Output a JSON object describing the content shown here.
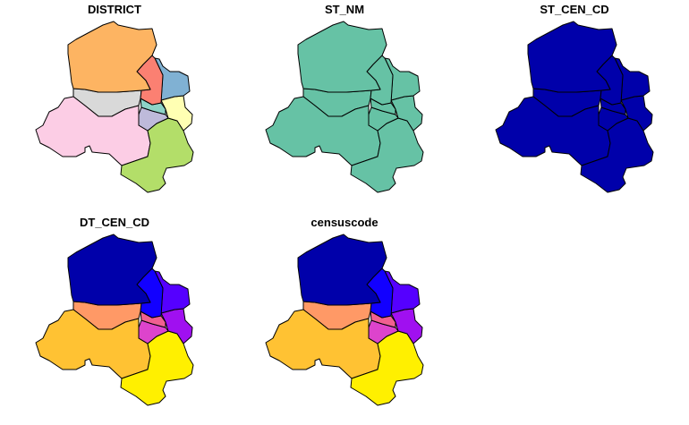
{
  "panels": [
    {
      "title": "DISTRICT",
      "fills": [
        "#FDB462",
        "#FB8072",
        "#80B1D3",
        "#FFFFB3",
        "#8DD3C7",
        "#BEBADA",
        "#B3DE69",
        "#FCCDE5",
        "#D9D9D9"
      ]
    },
    {
      "title": "ST_NM",
      "fills": [
        "#66C2A5",
        "#66C2A5",
        "#66C2A5",
        "#66C2A5",
        "#66C2A5",
        "#66C2A5",
        "#66C2A5",
        "#66C2A5",
        "#66C2A5"
      ]
    },
    {
      "title": "ST_CEN_CD",
      "fills": [
        "#0000AA",
        "#0000AA",
        "#0000AA",
        "#0000AA",
        "#0000AA",
        "#0000AA",
        "#0000AA",
        "#0000AA",
        "#0000AA"
      ]
    },
    {
      "title": "DT_CEN_CD",
      "fills": [
        "#0000AA",
        "#1200FF",
        "#5500FF",
        "#A010F0",
        "#F06090",
        "#DD44CC",
        "#FFF000",
        "#FFC233",
        "#FF9966"
      ]
    },
    {
      "title": "censuscode",
      "fills": [
        "#0000AA",
        "#1200FF",
        "#5500FF",
        "#A010F0",
        "#F06090",
        "#DD44CC",
        "#FFF000",
        "#FFC233",
        "#FF9966"
      ]
    }
  ]
}
